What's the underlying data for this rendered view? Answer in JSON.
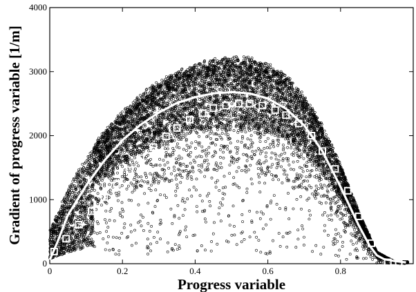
{
  "chart_data": {
    "type": "scatter",
    "title": "",
    "xlabel": "Progress variable",
    "ylabel": "Gradient of progress variable [1/m]",
    "xlim": [
      0,
      1
    ],
    "ylim": [
      0,
      4000
    ],
    "x_ticks": [
      0,
      0.2,
      0.4,
      0.6,
      0.8
    ],
    "x_tick_labels": [
      "0",
      "0.2",
      "0.4",
      "0.6",
      "0.8"
    ],
    "y_ticks": [
      0,
      1000,
      2000,
      3000,
      4000
    ],
    "y_tick_labels": [
      "0",
      "1000",
      "2000",
      "3000",
      "4000"
    ],
    "grid": false,
    "legend": "none",
    "series": [
      {
        "kind": "scatter-cloud",
        "marker": "small open circle",
        "color": "#000000",
        "description_points": "dense cloud of samples bounded above by an arch peaking near 3100 at c≈0.55, concentrated just below the arch, sparse toward the baseline",
        "upper_envelope": {
          "x": [
            0.0,
            0.05,
            0.1,
            0.15,
            0.2,
            0.25,
            0.3,
            0.35,
            0.4,
            0.45,
            0.5,
            0.55,
            0.6,
            0.65,
            0.7,
            0.75,
            0.8,
            0.85,
            0.9,
            0.95
          ],
          "y": [
            500,
            1150,
            1650,
            2020,
            2340,
            2580,
            2780,
            2930,
            3050,
            3120,
            3160,
            3140,
            3060,
            2880,
            2580,
            2120,
            1520,
            800,
            180,
            30
          ]
        }
      },
      {
        "kind": "line",
        "color": "#ffffff",
        "x": [
          0.0,
          0.02,
          0.05,
          0.1,
          0.15,
          0.2,
          0.25,
          0.3,
          0.35,
          0.4,
          0.45,
          0.5,
          0.55,
          0.6,
          0.65,
          0.7,
          0.75,
          0.8,
          0.85,
          0.88,
          0.9,
          0.92,
          0.95,
          0.98
        ],
        "y": [
          60,
          320,
          760,
          1220,
          1610,
          1930,
          2170,
          2360,
          2510,
          2600,
          2660,
          2680,
          2660,
          2580,
          2420,
          2160,
          1760,
          1200,
          600,
          280,
          130,
          70,
          40,
          20
        ]
      },
      {
        "kind": "markers",
        "marker": "open square",
        "color": "#ffffff",
        "x": [
          0.012,
          0.045,
          0.08,
          0.115,
          0.15,
          0.185,
          0.22,
          0.25,
          0.285,
          0.32,
          0.35,
          0.385,
          0.42,
          0.45,
          0.485,
          0.52,
          0.55,
          0.585,
          0.62,
          0.65,
          0.685,
          0.72,
          0.75,
          0.785,
          0.82,
          0.85,
          0.885,
          0.93,
          0.96
        ],
        "y": [
          190,
          390,
          610,
          820,
          1040,
          1250,
          1460,
          1650,
          1820,
          1990,
          2120,
          2250,
          2350,
          2430,
          2470,
          2500,
          2500,
          2470,
          2400,
          2320,
          2190,
          2000,
          1760,
          1480,
          1140,
          740,
          320,
          20,
          10
        ]
      }
    ]
  }
}
